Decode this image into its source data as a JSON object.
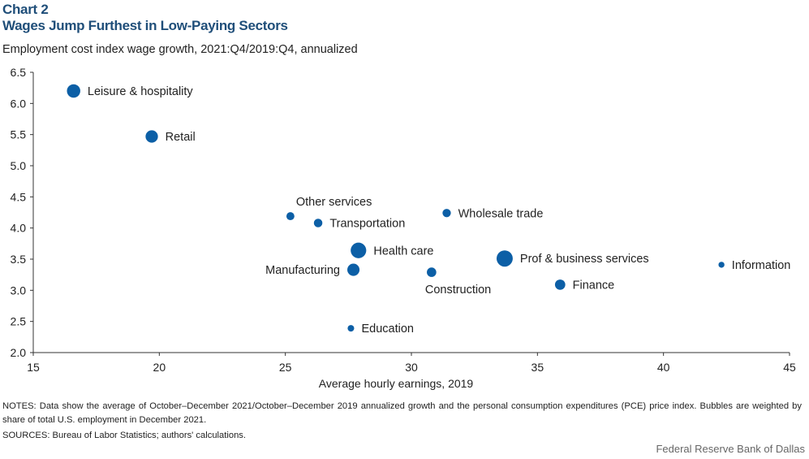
{
  "chart_label": "Chart 2",
  "title": "Wages Jump Furthest in Low-Paying Sectors",
  "subtitle": "Employment cost index wage growth, 2021:Q4/2019:Q4, annualized",
  "notes": "NOTES: Data show the average  of October–December 2021/October–December 2019 annualized growth and the personal consumption expenditures (PCE) price index. Bubbles are weighted by share of total U.S. employment in December 2021.",
  "sources": "SOURCES: Bureau of Labor Statistics; authors' calculations.",
  "credit": "Federal Reserve Bank of Dallas",
  "colors": {
    "bubble": "#0c5fa6",
    "axis": "#333333"
  },
  "chart_data": {
    "type": "scatter",
    "title": "Wages Jump Furthest in Low-Paying Sectors",
    "xlabel": "Average hourly earnings, 2019",
    "ylabel": "",
    "xlim": [
      15,
      45
    ],
    "ylim": [
      2.0,
      6.5
    ],
    "xticks": [
      "15",
      "20",
      "25",
      "30",
      "35",
      "40",
      "45"
    ],
    "yticks": [
      "2.0",
      "2.5",
      "3.0",
      "3.5",
      "4.0",
      "4.5",
      "5.0",
      "5.5",
      "6.0",
      "6.5"
    ],
    "grid": false,
    "points": [
      {
        "label": "Leisure & hospitality",
        "x": 16.6,
        "y": 6.2,
        "weight": 10.0
      },
      {
        "label": "Retail",
        "x": 19.7,
        "y": 5.47,
        "weight": 8.6
      },
      {
        "label": "Other services",
        "x": 25.2,
        "y": 4.19,
        "weight": 3.6
      },
      {
        "label": "Transportation",
        "x": 26.3,
        "y": 4.08,
        "weight": 4.1
      },
      {
        "label": "Wholesale trade",
        "x": 31.4,
        "y": 4.24,
        "weight": 3.9
      },
      {
        "label": "Health care",
        "x": 27.9,
        "y": 3.64,
        "weight": 13.6
      },
      {
        "label": "Manufacturing",
        "x": 27.7,
        "y": 3.33,
        "weight": 8.4
      },
      {
        "label": "Construction",
        "x": 30.8,
        "y": 3.29,
        "weight": 5.0
      },
      {
        "label": "Prof & business services",
        "x": 33.7,
        "y": 3.51,
        "weight": 14.7
      },
      {
        "label": "Finance",
        "x": 35.9,
        "y": 3.09,
        "weight": 6.0
      },
      {
        "label": "Information",
        "x": 42.3,
        "y": 3.41,
        "weight": 2.0
      },
      {
        "label": "Education",
        "x": 27.6,
        "y": 2.39,
        "weight": 2.4
      }
    ]
  }
}
